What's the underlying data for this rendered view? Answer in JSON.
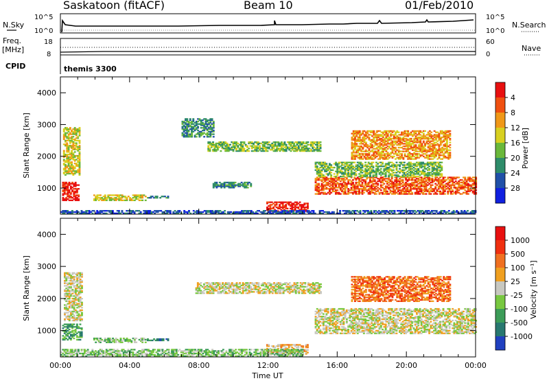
{
  "header": {
    "station": "Saskatoon (fitACF)",
    "beam": "Beam 10",
    "date": "01/Feb/2010"
  },
  "top_panels": {
    "nsky_label": "N.Sky",
    "nsky_top": "10^5",
    "nsky_bottom": "10^0",
    "nsearch_label": "N.Search",
    "nsearch_top": "10^5",
    "nsearch_bottom": "10^0",
    "freq_label": "Freq.",
    "freq_unit": "[MHz]",
    "freq_top": "18",
    "freq_bottom": "8",
    "nave_label": "Nave",
    "nave_top": "60",
    "nave_bottom": "0",
    "cpid_label": "CPID",
    "cpid_value": "themis 3300"
  },
  "chart_data": [
    {
      "type": "heatmap",
      "name": "Power",
      "ylabel": "Slant Range [km]",
      "xlabel": "Time UT",
      "ylim": [
        180,
        4500
      ],
      "xlim_hours": [
        0,
        24
      ],
      "yticks": [
        "1000",
        "2000",
        "3000",
        "4000"
      ],
      "xticks": [
        "00:00",
        "04:00",
        "08:00",
        "12:00",
        "16:00",
        "20:00",
        "00:00"
      ],
      "colorbar": {
        "label": "Power [dB]",
        "ticks": [
          "4",
          "8",
          "12",
          "16",
          "20",
          "24",
          "28"
        ],
        "colors": [
          "#1020e0",
          "#2050a8",
          "#2e8c6a",
          "#6ab83a",
          "#d8d020",
          "#f09818",
          "#f05010",
          "#e81010"
        ]
      },
      "bands": [
        {
          "t0": 0.1,
          "t1": 1.0,
          "r0": 600,
          "r1": 1200,
          "level": 7
        },
        {
          "t0": 0.15,
          "t1": 1.1,
          "r0": 1400,
          "r1": 2900,
          "level": 4
        },
        {
          "t0": 1.9,
          "t1": 4.9,
          "r0": 600,
          "r1": 800,
          "level": 4
        },
        {
          "t0": 5.0,
          "t1": 6.2,
          "r0": 680,
          "r1": 760,
          "level": 2
        },
        {
          "t0": 7.0,
          "t1": 8.8,
          "r0": 2600,
          "r1": 3200,
          "level": 2
        },
        {
          "t0": 8.5,
          "t1": 15.0,
          "r0": 2150,
          "r1": 2450,
          "level": 3
        },
        {
          "t0": 8.8,
          "t1": 11.0,
          "r0": 1000,
          "r1": 1200,
          "level": 2
        },
        {
          "t0": 11.9,
          "t1": 14.3,
          "r0": 260,
          "r1": 560,
          "level": 7
        },
        {
          "t0": 14.7,
          "t1": 24.0,
          "r0": 800,
          "r1": 1350,
          "level": 6
        },
        {
          "t0": 14.7,
          "t1": 22.0,
          "r0": 1350,
          "r1": 1800,
          "level": 3
        },
        {
          "t0": 16.8,
          "t1": 22.5,
          "r0": 1900,
          "r1": 2800,
          "level": 5
        },
        {
          "t0": 0.0,
          "t1": 24.0,
          "r0": 190,
          "r1": 280,
          "level": 1
        }
      ]
    },
    {
      "type": "heatmap",
      "name": "Velocity",
      "ylabel": "Slant Range [km]",
      "xlabel": "Time UT",
      "ylim": [
        180,
        4500
      ],
      "xlim_hours": [
        0,
        24
      ],
      "yticks": [
        "1000",
        "2000",
        "3000",
        "4000"
      ],
      "xticks": [
        "00:00",
        "04:00",
        "08:00",
        "12:00",
        "16:00",
        "20:00",
        "00:00"
      ],
      "colorbar": {
        "label": "Velocity [m s⁻¹]",
        "ticks": [
          "1000",
          "500",
          "100",
          "25",
          "-25",
          "-100",
          "-500",
          "-1000"
        ],
        "colors": [
          "#2040c0",
          "#287870",
          "#3c9c58",
          "#78c840",
          "#c8c8c0",
          "#f0a020",
          "#f07020",
          "#f03010",
          "#e81010"
        ]
      },
      "bands": [
        {
          "t0": 0.1,
          "t1": 1.2,
          "r0": 700,
          "r1": 1200,
          "level": 2
        },
        {
          "t0": 0.2,
          "t1": 1.2,
          "r0": 1300,
          "r1": 2800,
          "level": 4
        },
        {
          "t0": 1.9,
          "t1": 4.9,
          "r0": 620,
          "r1": 780,
          "level": 3
        },
        {
          "t0": 5.0,
          "t1": 6.2,
          "r0": 680,
          "r1": 760,
          "level": 1
        },
        {
          "t0": 7.8,
          "t1": 15.0,
          "r0": 2150,
          "r1": 2500,
          "level": 4
        },
        {
          "t0": 14.7,
          "t1": 24.0,
          "r0": 900,
          "r1": 1700,
          "level": 4
        },
        {
          "t0": 11.9,
          "t1": 14.3,
          "r0": 260,
          "r1": 560,
          "level": 5
        },
        {
          "t0": 16.8,
          "t1": 22.5,
          "r0": 1900,
          "r1": 2700,
          "level": 6
        },
        {
          "t0": 0.0,
          "t1": 14.0,
          "r0": 190,
          "r1": 400,
          "level": 3
        }
      ]
    }
  ]
}
